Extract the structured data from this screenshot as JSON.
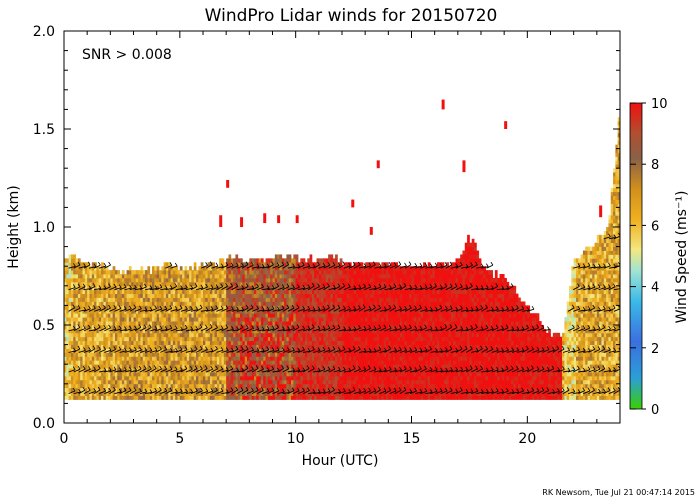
{
  "chart_data": {
    "type": "heatmap",
    "title": "WindPro Lidar winds for 20150720",
    "xlabel": "Hour (UTC)",
    "ylabel": "Height (km)",
    "xlim": [
      0,
      24
    ],
    "ylim": [
      0,
      2.0
    ],
    "x_ticks": [
      0,
      5,
      10,
      15,
      20
    ],
    "x_tick_labels": [
      "0",
      "5",
      "10",
      "15",
      "20"
    ],
    "y_ticks": [
      0.0,
      0.5,
      1.0,
      1.5,
      2.0
    ],
    "y_tick_labels": [
      "0.0",
      "0.5",
      "1.0",
      "1.5",
      "2.0"
    ],
    "annotation": "SNR > 0.008",
    "colorbar": {
      "label": "Wind Speed (ms⁻¹)",
      "range": [
        0,
        10
      ],
      "ticks": [
        0,
        2,
        4,
        6,
        8,
        10
      ],
      "tick_labels": [
        "0",
        "2",
        "4",
        "6",
        "8",
        "10"
      ]
    },
    "credit": "RK Newsom, Tue Jul 21 00:47:14 2015",
    "top_height_km": [
      [
        0.0,
        0.84
      ],
      [
        0.5,
        0.84
      ],
      [
        1.0,
        0.8
      ],
      [
        1.5,
        0.8
      ],
      [
        2.0,
        0.78
      ],
      [
        2.5,
        0.76
      ],
      [
        3.0,
        0.78
      ],
      [
        3.5,
        0.76
      ],
      [
        4.0,
        0.78
      ],
      [
        4.5,
        0.8
      ],
      [
        5.0,
        0.78
      ],
      [
        5.5,
        0.78
      ],
      [
        6.0,
        0.8
      ],
      [
        6.5,
        0.8
      ],
      [
        7.0,
        0.82
      ],
      [
        7.5,
        0.84
      ],
      [
        8.0,
        0.82
      ],
      [
        8.5,
        0.82
      ],
      [
        9.0,
        0.84
      ],
      [
        9.5,
        0.84
      ],
      [
        10.0,
        0.84
      ],
      [
        10.5,
        0.82
      ],
      [
        11.0,
        0.84
      ],
      [
        11.5,
        0.84
      ],
      [
        12.0,
        0.82
      ],
      [
        12.5,
        0.8
      ],
      [
        13.0,
        0.8
      ],
      [
        13.5,
        0.8
      ],
      [
        14.0,
        0.8
      ],
      [
        14.5,
        0.8
      ],
      [
        15.0,
        0.8
      ],
      [
        15.5,
        0.8
      ],
      [
        16.0,
        0.8
      ],
      [
        16.5,
        0.8
      ],
      [
        17.0,
        0.82
      ],
      [
        17.5,
        0.95
      ],
      [
        18.0,
        0.82
      ],
      [
        18.5,
        0.76
      ],
      [
        19.0,
        0.72
      ],
      [
        19.5,
        0.66
      ],
      [
        20.0,
        0.6
      ],
      [
        20.5,
        0.52
      ],
      [
        21.0,
        0.45
      ],
      [
        21.5,
        0.42
      ],
      [
        22.0,
        0.82
      ],
      [
        22.5,
        0.88
      ],
      [
        23.0,
        0.92
      ],
      [
        23.5,
        1.0
      ],
      [
        24.0,
        1.6
      ]
    ],
    "dominant_speed_ms": [
      {
        "x_range": [
          0,
          2
        ],
        "speed": 6.5
      },
      {
        "x_range": [
          2,
          7
        ],
        "speed": 6.8
      },
      {
        "x_range": [
          7,
          10
        ],
        "speed": 8.5
      },
      {
        "x_range": [
          10,
          12
        ],
        "speed": 9.5
      },
      {
        "x_range": [
          12,
          21.5
        ],
        "speed": 10
      },
      {
        "x_range": [
          21.5,
          24
        ],
        "speed": 6.5
      }
    ],
    "barb_heights_km": [
      0.15,
      0.26,
      0.36,
      0.47,
      0.57,
      0.68,
      0.79,
      0.94
    ]
  }
}
